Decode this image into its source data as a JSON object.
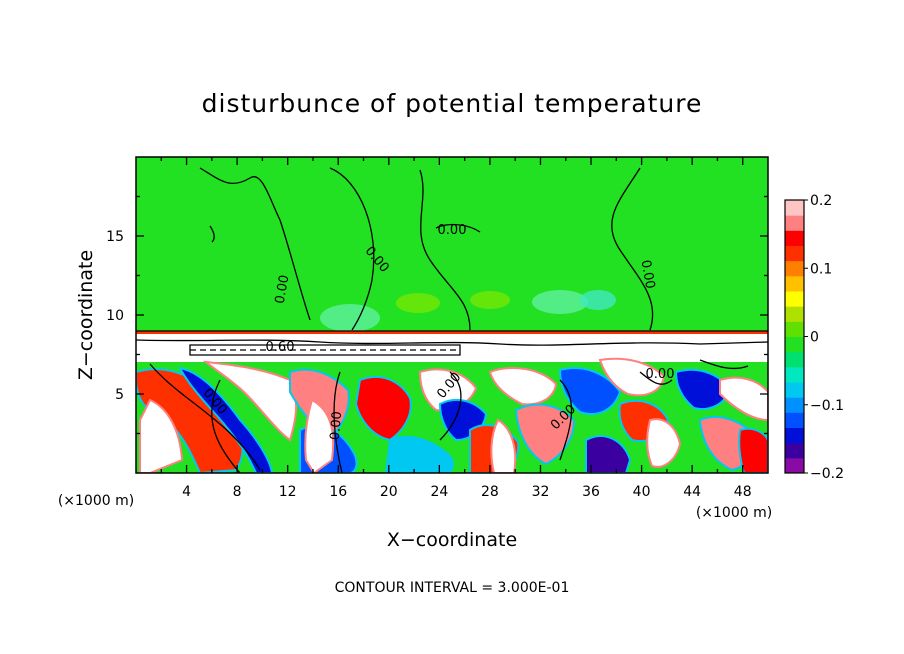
{
  "chart_data": {
    "type": "heatmap",
    "title": "disturbunce of potential temperature",
    "xlabel": "X−coordinate",
    "ylabel": "Z−coordinate",
    "x_unit_label": "(×1000 m)",
    "z_unit_label": "(×1000 m)",
    "xlim": [
      0,
      50
    ],
    "ylim": [
      0,
      20
    ],
    "x_ticks": [
      4,
      8,
      12,
      16,
      20,
      24,
      28,
      32,
      36,
      40,
      44,
      48
    ],
    "x_tick_labels": [
      "4",
      "8",
      "12",
      "16",
      "20",
      "24",
      "28",
      "32",
      "36",
      "40",
      "44",
      "48"
    ],
    "y_ticks": [
      5,
      10,
      15
    ],
    "y_tick_labels": [
      "5",
      "10",
      "15"
    ],
    "colorbar": {
      "range": [
        -0.2,
        0.2
      ],
      "ticks": [
        0.2,
        0.1,
        0,
        -0.1,
        -0.2
      ],
      "tick_labels": [
        "0.2",
        "0.1",
        "0",
        "−0.1",
        "−0.2"
      ],
      "colors": [
        "#8a0aa5",
        "#3a00a0",
        "#0010d8",
        "#0050ff",
        "#0090ff",
        "#00c8f0",
        "#00e8c0",
        "#00e070",
        "#22e022",
        "#60e000",
        "#b0e000",
        "#ffff00",
        "#ffc000",
        "#ff8000",
        "#ff3000",
        "#ff0000",
        "#ff8080",
        "#ffc4c4"
      ]
    },
    "contour_labels": [
      "0.00",
      "0.00",
      "0.00",
      "0.00",
      "0.00",
      "0.00",
      "0.00",
      "0.00",
      "0.60"
    ],
    "contour_interval_note": "CONTOUR INTERVAL = 3.000E-01",
    "regions": {
      "upper_layer_z_range": [
        9,
        20
      ],
      "upper_layer_value": 0.0,
      "turbulent_layer_z_range": [
        0,
        9
      ],
      "turbulent_layer_value_range": [
        -0.2,
        0.2
      ]
    }
  }
}
